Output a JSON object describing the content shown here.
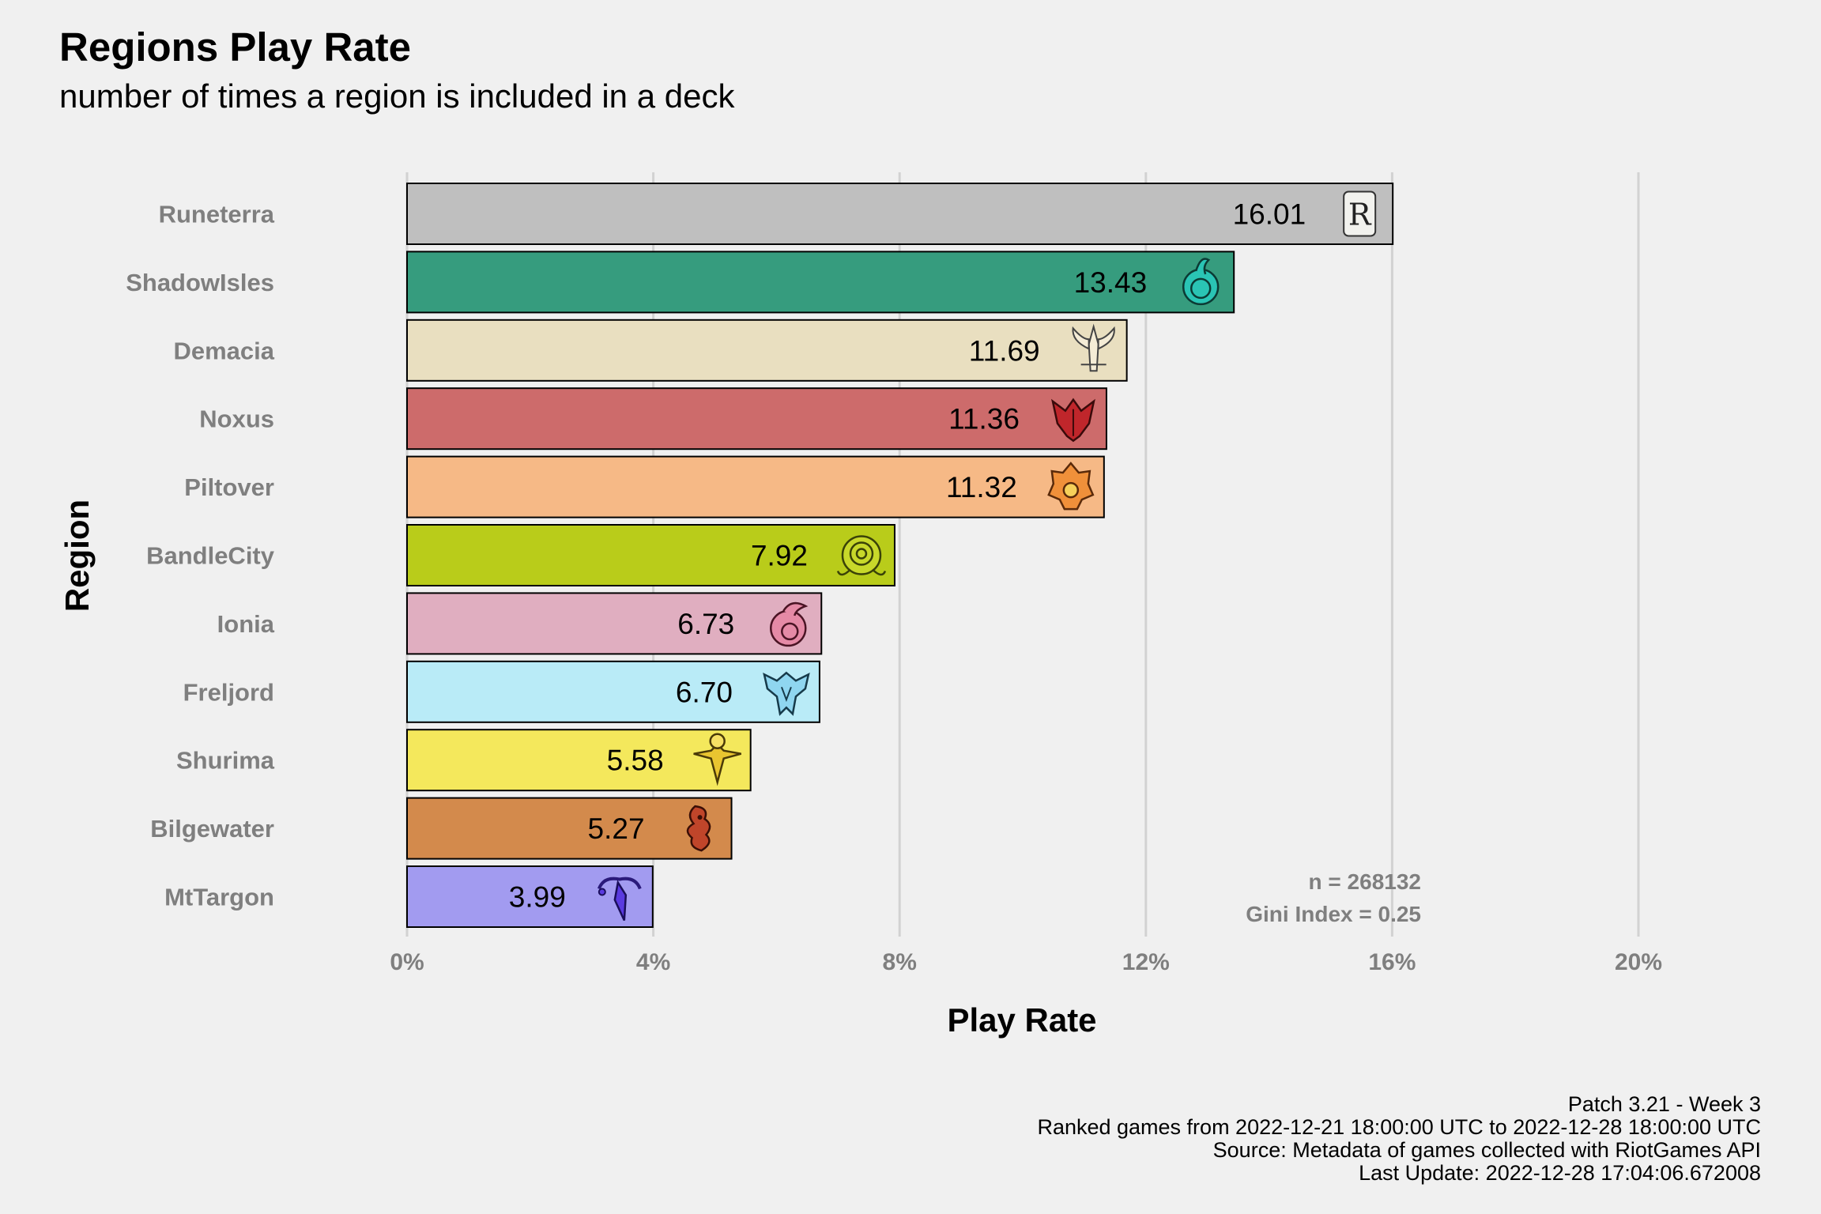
{
  "chart_data": {
    "type": "bar",
    "orientation": "horizontal",
    "title": "Regions Play Rate",
    "subtitle": "number of times a region is included in a deck",
    "xlabel": "Play Rate",
    "ylabel": "Region",
    "xlim": [
      0,
      20
    ],
    "x_ticks": [
      0,
      4,
      8,
      12,
      16,
      20
    ],
    "x_tick_labels": [
      "0%",
      "4%",
      "8%",
      "12%",
      "16%",
      "20%"
    ],
    "grid": "vertical major gridlines",
    "categories": [
      "Runeterra",
      "ShadowIsles",
      "Demacia",
      "Noxus",
      "Piltover",
      "BandleCity",
      "Ionia",
      "Freljord",
      "Shurima",
      "Bilgewater",
      "MtTargon"
    ],
    "values": [
      16.01,
      13.43,
      11.69,
      11.36,
      11.32,
      7.92,
      6.73,
      6.7,
      5.58,
      5.27,
      3.99
    ],
    "value_labels": [
      "16.01",
      "13.43",
      "11.69",
      "11.36",
      "11.32",
      "7.92",
      "6.73",
      "6.70",
      "5.58",
      "5.27",
      "3.99"
    ],
    "colors": [
      "#bfbfbf",
      "#369c7e",
      "#e9dfc0",
      "#cd6b6b",
      "#f6b986",
      "#b9cc1a",
      "#e0aec0",
      "#b9ebf7",
      "#f4e85c",
      "#d38a4c",
      "#a29bf0"
    ],
    "icons": [
      "runeterra-icon",
      "shadow-isles-icon",
      "demacia-icon",
      "noxus-icon",
      "piltover-icon",
      "bandle-city-icon",
      "ionia-icon",
      "freljord-icon",
      "shurima-icon",
      "bilgewater-icon",
      "mt-targon-icon"
    ],
    "annotations": [
      "n = 268132",
      "Gini Index = 0.25"
    ]
  },
  "caption": [
    "Patch 3.21 - Week 3",
    "Ranked games from 2022-12-21 18:00:00 UTC to 2022-12-28 18:00:00 UTC",
    "Source: Metadata of games collected with RiotGames API",
    "Last Update: 2022-12-28 17:04:06.672008"
  ]
}
